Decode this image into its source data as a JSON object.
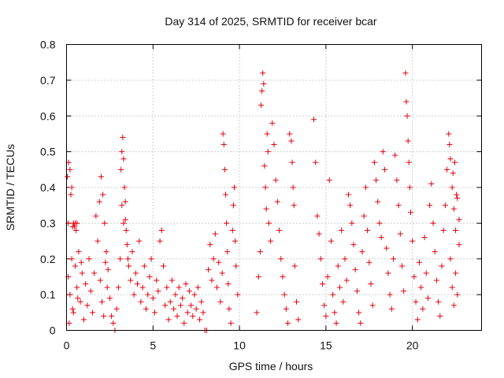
{
  "chart_data": {
    "type": "scatter",
    "title": "Day 314 of 2025, SRMTID for receiver bcar",
    "xlabel": "GPS time / hours",
    "ylabel": "SRMTID / TECUs",
    "xlim": [
      0,
      24
    ],
    "ylim": [
      0,
      0.8
    ],
    "x_ticks": [
      0,
      5,
      10,
      15,
      20
    ],
    "y_ticks": [
      0,
      0.1,
      0.2,
      0.3,
      0.4,
      0.5,
      0.6,
      0.7,
      0.8
    ],
    "x_tick_labels": [
      "0",
      "5",
      "10",
      "15",
      "20"
    ],
    "y_tick_labels": [
      "0",
      "0.1",
      "0.2",
      "0.3",
      "0.4",
      "0.5",
      "0.6",
      "0.7",
      "0.8"
    ],
    "grid": true,
    "marker": "+",
    "series": [
      {
        "name": "SRMTID",
        "color": "#e8000b",
        "points": [
          [
            0.05,
            0.43
          ],
          [
            0.1,
            0.3
          ],
          [
            0.12,
            0.47
          ],
          [
            0.2,
            0.45
          ],
          [
            0.25,
            0.38
          ],
          [
            0.3,
            0.4
          ],
          [
            0.35,
            0.29
          ],
          [
            0.4,
            0.3
          ],
          [
            0.45,
            0.29
          ],
          [
            0.5,
            0.3
          ],
          [
            0.55,
            0.28
          ],
          [
            0.6,
            0.3
          ],
          [
            0.1,
            0.15
          ],
          [
            0.2,
            0.1
          ],
          [
            0.3,
            0.2
          ],
          [
            0.4,
            0.05
          ],
          [
            0.5,
            0.18
          ],
          [
            0.6,
            0.12
          ],
          [
            0.7,
            0.22
          ],
          [
            0.8,
            0.08
          ],
          [
            0.9,
            0.16
          ],
          [
            1.0,
            0.03
          ],
          [
            0.15,
            0.02
          ],
          [
            0.35,
            0.06
          ],
          [
            0.65,
            0.09
          ],
          [
            0.85,
            0.19
          ],
          [
            1.1,
            0.13
          ],
          [
            1.2,
            0.07
          ],
          [
            1.3,
            0.2
          ],
          [
            1.4,
            0.11
          ],
          [
            1.5,
            0.05
          ],
          [
            1.6,
            0.16
          ],
          [
            1.7,
            0.32
          ],
          [
            1.8,
            0.25
          ],
          [
            1.9,
            0.36
          ],
          [
            2.0,
            0.43
          ],
          [
            2.1,
            0.38
          ],
          [
            2.2,
            0.3
          ],
          [
            2.3,
            0.22
          ],
          [
            2.4,
            0.17
          ],
          [
            1.95,
            0.14
          ],
          [
            2.05,
            0.08
          ],
          [
            2.15,
            0.04
          ],
          [
            2.25,
            0.19
          ],
          [
            2.35,
            0.12
          ],
          [
            2.5,
            0.09
          ],
          [
            2.6,
            0.04
          ],
          [
            2.7,
            0.02
          ],
          [
            2.8,
            0.0
          ],
          [
            2.9,
            0.06
          ],
          [
            3.0,
            0.12
          ],
          [
            3.1,
            0.2
          ],
          [
            3.15,
            0.45
          ],
          [
            3.2,
            0.5
          ],
          [
            3.25,
            0.54
          ],
          [
            3.3,
            0.48
          ],
          [
            3.35,
            0.4
          ],
          [
            3.4,
            0.36
          ],
          [
            3.45,
            0.28
          ],
          [
            3.5,
            0.24
          ],
          [
            3.2,
            0.35
          ],
          [
            3.3,
            0.3
          ],
          [
            3.4,
            0.31
          ],
          [
            3.55,
            0.2
          ],
          [
            3.6,
            0.18
          ],
          [
            3.7,
            0.14
          ],
          [
            3.8,
            0.22
          ],
          [
            3.9,
            0.1
          ],
          [
            4.0,
            0.16
          ],
          [
            4.1,
            0.13
          ],
          [
            4.2,
            0.25
          ],
          [
            4.3,
            0.08
          ],
          [
            4.4,
            0.12
          ],
          [
            4.5,
            0.18
          ],
          [
            4.6,
            0.06
          ],
          [
            4.7,
            0.1
          ],
          [
            4.8,
            0.15
          ],
          [
            4.9,
            0.2
          ],
          [
            5.0,
            0.09
          ],
          [
            5.1,
            0.05
          ],
          [
            5.2,
            0.14
          ],
          [
            5.3,
            0.11
          ],
          [
            5.4,
            0.25
          ],
          [
            5.5,
            0.28
          ],
          [
            5.6,
            0.18
          ],
          [
            5.7,
            0.07
          ],
          [
            5.8,
            0.12
          ],
          [
            5.9,
            0.03
          ],
          [
            6.0,
            0.08
          ],
          [
            6.1,
            0.14
          ],
          [
            6.2,
            0.06
          ],
          [
            6.3,
            0.1
          ],
          [
            6.4,
            0.04
          ],
          [
            6.5,
            0.12
          ],
          [
            6.6,
            0.07
          ],
          [
            6.7,
            0.09
          ],
          [
            6.8,
            0.02
          ],
          [
            6.9,
            0.13
          ],
          [
            7.0,
            0.05
          ],
          [
            7.1,
            0.11
          ],
          [
            7.2,
            0.07
          ],
          [
            7.3,
            0.04
          ],
          [
            7.4,
            0.1
          ],
          [
            7.5,
            0.06
          ],
          [
            7.6,
            0.12
          ],
          [
            7.7,
            0.03
          ],
          [
            7.8,
            0.08
          ],
          [
            7.9,
            0.05
          ],
          [
            8.0,
            0.0
          ],
          [
            8.1,
            0.0
          ],
          [
            8.2,
            0.17
          ],
          [
            8.3,
            0.24
          ],
          [
            8.4,
            0.14
          ],
          [
            8.5,
            0.2
          ],
          [
            8.6,
            0.27
          ],
          [
            8.7,
            0.12
          ],
          [
            8.8,
            0.19
          ],
          [
            8.9,
            0.08
          ],
          [
            9.0,
            0.16
          ],
          [
            9.05,
            0.55
          ],
          [
            9.1,
            0.52
          ],
          [
            9.15,
            0.45
          ],
          [
            9.2,
            0.38
          ],
          [
            9.25,
            0.3
          ],
          [
            9.3,
            0.22
          ],
          [
            9.35,
            0.13
          ],
          [
            9.4,
            0.06
          ],
          [
            9.5,
            0.02
          ],
          [
            9.6,
            0.28
          ],
          [
            9.65,
            0.35
          ],
          [
            9.7,
            0.4
          ],
          [
            9.75,
            0.25
          ],
          [
            9.8,
            0.18
          ],
          [
            9.9,
            0.1
          ],
          [
            11.0,
            0.05
          ],
          [
            11.1,
            0.15
          ],
          [
            11.2,
            0.22
          ],
          [
            11.25,
            0.63
          ],
          [
            11.3,
            0.67
          ],
          [
            11.35,
            0.72
          ],
          [
            11.4,
            0.69
          ],
          [
            11.45,
            0.46
          ],
          [
            11.5,
            0.4
          ],
          [
            11.55,
            0.34
          ],
          [
            11.6,
            0.55
          ],
          [
            11.65,
            0.5
          ],
          [
            11.7,
            0.3
          ],
          [
            11.8,
            0.25
          ],
          [
            11.9,
            0.58
          ],
          [
            12.0,
            0.52
          ],
          [
            12.1,
            0.42
          ],
          [
            12.2,
            0.36
          ],
          [
            12.3,
            0.28
          ],
          [
            12.4,
            0.2
          ],
          [
            12.5,
            0.15
          ],
          [
            12.6,
            0.1
          ],
          [
            12.7,
            0.06
          ],
          [
            12.8,
            0.02
          ],
          [
            12.9,
            0.55
          ],
          [
            13.0,
            0.53
          ],
          [
            13.05,
            0.47
          ],
          [
            13.1,
            0.4
          ],
          [
            13.15,
            0.35
          ],
          [
            13.2,
            0.18
          ],
          [
            13.3,
            0.08
          ],
          [
            13.4,
            0.03
          ],
          [
            14.3,
            0.59
          ],
          [
            14.4,
            0.47
          ],
          [
            14.5,
            0.32
          ],
          [
            14.6,
            0.27
          ],
          [
            14.7,
            0.2
          ],
          [
            14.8,
            0.13
          ],
          [
            14.9,
            0.07
          ],
          [
            15.0,
            0.04
          ],
          [
            15.1,
            0.15
          ],
          [
            15.2,
            0.42
          ],
          [
            15.3,
            0.25
          ],
          [
            15.4,
            0.1
          ],
          [
            15.5,
            0.05
          ],
          [
            15.6,
            0.02
          ],
          [
            15.7,
            0.18
          ],
          [
            15.8,
            0.12
          ],
          [
            15.9,
            0.28
          ],
          [
            16.0,
            0.08
          ],
          [
            16.1,
            0.2
          ],
          [
            16.2,
            0.14
          ],
          [
            16.3,
            0.38
          ],
          [
            16.4,
            0.35
          ],
          [
            16.5,
            0.3
          ],
          [
            16.6,
            0.24
          ],
          [
            16.7,
            0.17
          ],
          [
            16.8,
            0.11
          ],
          [
            16.9,
            0.05
          ],
          [
            17.0,
            0.02
          ],
          [
            17.1,
            0.22
          ],
          [
            17.2,
            0.32
          ],
          [
            17.3,
            0.4
          ],
          [
            17.4,
            0.28
          ],
          [
            17.5,
            0.19
          ],
          [
            17.6,
            0.13
          ],
          [
            17.7,
            0.07
          ],
          [
            17.8,
            0.47
          ],
          [
            17.9,
            0.42
          ],
          [
            18.0,
            0.36
          ],
          [
            18.1,
            0.3
          ],
          [
            18.2,
            0.26
          ],
          [
            18.3,
            0.5
          ],
          [
            18.4,
            0.45
          ],
          [
            18.5,
            0.23
          ],
          [
            18.6,
            0.16
          ],
          [
            18.7,
            0.1
          ],
          [
            18.8,
            0.06
          ],
          [
            18.9,
            0.2
          ],
          [
            19.0,
            0.49
          ],
          [
            19.1,
            0.42
          ],
          [
            19.2,
            0.35
          ],
          [
            19.3,
            0.27
          ],
          [
            19.4,
            0.18
          ],
          [
            19.5,
            0.11
          ],
          [
            19.6,
            0.72
          ],
          [
            19.65,
            0.64
          ],
          [
            19.7,
            0.6
          ],
          [
            19.75,
            0.53
          ],
          [
            19.8,
            0.47
          ],
          [
            19.85,
            0.4
          ],
          [
            19.9,
            0.33
          ],
          [
            20.0,
            0.25
          ],
          [
            20.1,
            0.15
          ],
          [
            20.2,
            0.08
          ],
          [
            20.3,
            0.03
          ],
          [
            20.4,
            0.19
          ],
          [
            20.5,
            0.12
          ],
          [
            20.6,
            0.06
          ],
          [
            20.7,
            0.26
          ],
          [
            20.8,
            0.16
          ],
          [
            20.9,
            0.09
          ],
          [
            21.0,
            0.35
          ],
          [
            21.1,
            0.41
          ],
          [
            21.2,
            0.3
          ],
          [
            21.3,
            0.22
          ],
          [
            21.4,
            0.14
          ],
          [
            21.5,
            0.08
          ],
          [
            21.6,
            0.04
          ],
          [
            21.7,
            0.18
          ],
          [
            21.8,
            0.28
          ],
          [
            21.9,
            0.35
          ],
          [
            22.0,
            0.45
          ],
          [
            22.1,
            0.55
          ],
          [
            22.15,
            0.52
          ],
          [
            22.2,
            0.48
          ],
          [
            22.3,
            0.4
          ],
          [
            22.4,
            0.34
          ],
          [
            22.5,
            0.28
          ],
          [
            22.6,
            0.37
          ],
          [
            22.7,
            0.31
          ],
          [
            22.2,
            0.2
          ],
          [
            22.3,
            0.12
          ],
          [
            22.4,
            0.07
          ],
          [
            22.5,
            0.16
          ],
          [
            22.6,
            0.1
          ],
          [
            22.7,
            0.24
          ],
          [
            22.35,
            0.44
          ],
          [
            22.45,
            0.47
          ],
          [
            22.55,
            0.38
          ]
        ]
      }
    ]
  }
}
